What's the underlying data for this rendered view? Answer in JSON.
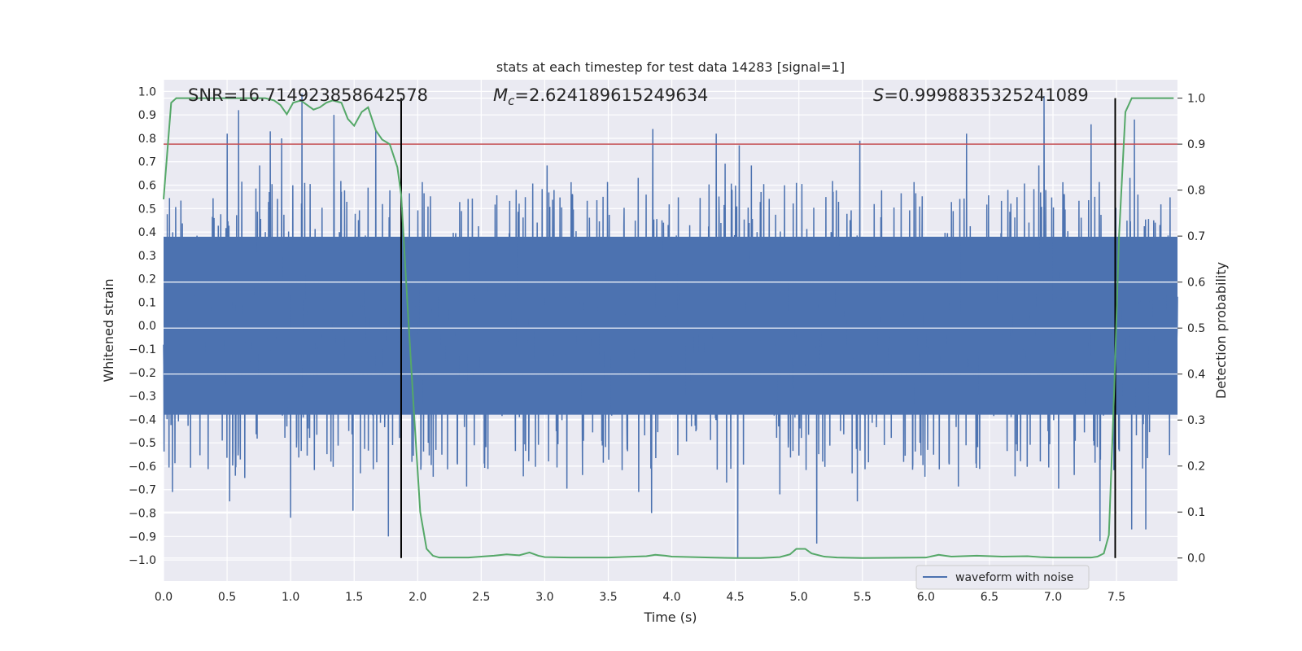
{
  "chart_data": {
    "type": "line",
    "title": "stats at each timestep for test data 14283 [signal=1]",
    "xlabel": "Time (s)",
    "ylabel_left": "Whitened strain",
    "ylabel_right": "Detection probability",
    "xlim": [
      0.0,
      7.98
    ],
    "ylim_left": [
      -1.09,
      1.05
    ],
    "ylim_right": [
      -0.05,
      1.04
    ],
    "x_ticks": [
      "0.0",
      "0.5",
      "1.0",
      "1.5",
      "2.0",
      "2.5",
      "3.0",
      "3.5",
      "4.0",
      "4.5",
      "5.0",
      "5.5",
      "6.0",
      "6.5",
      "7.0",
      "7.5"
    ],
    "y_ticks_left": [
      "1.0",
      "0.9",
      "0.8",
      "0.7",
      "0.6",
      "0.5",
      "0.4",
      "0.3",
      "0.2",
      "0.1",
      "0.0",
      "-0.1",
      "-0.2",
      "-0.3",
      "-0.4",
      "-0.5",
      "-0.6",
      "-0.7",
      "-0.8",
      "-0.9",
      "-1.0"
    ],
    "y_ticks_right": [
      "1.0",
      "0.9",
      "0.8",
      "0.7",
      "0.6",
      "0.5",
      "0.4",
      "0.3",
      "0.2",
      "0.1",
      "0.0"
    ],
    "annotations": {
      "snr": "SNR=16.714923858642578",
      "mc_symbol": "M",
      "mc_sub": "c",
      "mc_value": "=2.624189615249634",
      "s_symbol": "S",
      "s_value": "=0.9998835325241089"
    },
    "threshold": 0.9,
    "vertical_lines_x": [
      1.87,
      7.49
    ],
    "waveform": {
      "name": "waveform with noise",
      "core_amplitude": 0.38,
      "sample_count": 4096,
      "peaks": [
        {
          "x": 0.5,
          "y": 0.82
        },
        {
          "x": 0.59,
          "y": 0.92
        },
        {
          "x": 0.84,
          "y": 0.83
        },
        {
          "x": 0.93,
          "y": 0.8
        },
        {
          "x": 1.09,
          "y": 0.99
        },
        {
          "x": 1.34,
          "y": 0.9
        },
        {
          "x": 1.67,
          "y": 0.84
        },
        {
          "x": 3.85,
          "y": 0.84
        },
        {
          "x": 4.35,
          "y": 0.82
        },
        {
          "x": 4.53,
          "y": 0.77
        },
        {
          "x": 5.48,
          "y": 0.79
        },
        {
          "x": 6.32,
          "y": 0.82
        },
        {
          "x": 6.93,
          "y": 0.98
        },
        {
          "x": 7.3,
          "y": 0.86
        },
        {
          "x": 7.64,
          "y": 0.88
        },
        {
          "x": 0.52,
          "y": -0.75
        },
        {
          "x": 0.64,
          "y": -0.65
        },
        {
          "x": 1.0,
          "y": -0.82
        },
        {
          "x": 1.49,
          "y": -0.79
        },
        {
          "x": 1.77,
          "y": -0.9
        },
        {
          "x": 3.74,
          "y": -0.71
        },
        {
          "x": 3.84,
          "y": -0.8
        },
        {
          "x": 4.52,
          "y": -0.99
        },
        {
          "x": 5.14,
          "y": -0.93
        },
        {
          "x": 5.46,
          "y": -0.75
        },
        {
          "x": 7.37,
          "y": -0.92
        },
        {
          "x": 7.62,
          "y": -0.87
        },
        {
          "x": 7.73,
          "y": -0.87
        },
        {
          "x": 0.07,
          "y": -0.71
        },
        {
          "x": 4.85,
          "y": -0.72
        }
      ]
    },
    "detection_probability": {
      "x": [
        0.0,
        0.06,
        0.1,
        0.2,
        0.4,
        0.6,
        0.7,
        0.8,
        0.87,
        0.92,
        0.97,
        1.02,
        1.08,
        1.13,
        1.18,
        1.23,
        1.28,
        1.33,
        1.4,
        1.45,
        1.5,
        1.56,
        1.61,
        1.67,
        1.72,
        1.78,
        1.84,
        1.87,
        1.92,
        1.97,
        2.02,
        2.07,
        2.12,
        2.17,
        2.25,
        2.4,
        2.6,
        2.7,
        2.8,
        2.88,
        2.95,
        3.0,
        3.2,
        3.5,
        3.8,
        3.87,
        3.95,
        4.0,
        4.3,
        4.5,
        4.7,
        4.85,
        4.93,
        4.98,
        5.05,
        5.1,
        5.2,
        5.3,
        5.5,
        6.0,
        6.1,
        6.2,
        6.4,
        6.6,
        6.8,
        6.9,
        7.0,
        7.2,
        7.3,
        7.35,
        7.4,
        7.44,
        7.48,
        7.52,
        7.57,
        7.62,
        7.7,
        7.95
      ],
      "y": [
        0.78,
        0.99,
        1.0,
        1.0,
        1.0,
        1.0,
        1.0,
        1.0,
        0.995,
        0.985,
        0.965,
        0.99,
        0.995,
        0.985,
        0.975,
        0.98,
        0.99,
        0.995,
        0.99,
        0.955,
        0.94,
        0.97,
        0.98,
        0.93,
        0.91,
        0.9,
        0.85,
        0.79,
        0.55,
        0.32,
        0.1,
        0.02,
        0.005,
        0.001,
        0.001,
        0.001,
        0.005,
        0.008,
        0.006,
        0.012,
        0.005,
        0.002,
        0.001,
        0.001,
        0.004,
        0.007,
        0.005,
        0.003,
        0.001,
        0.0,
        0.0,
        0.002,
        0.008,
        0.02,
        0.02,
        0.01,
        0.003,
        0.001,
        0.0,
        0.001,
        0.007,
        0.003,
        0.005,
        0.003,
        0.004,
        0.002,
        0.001,
        0.001,
        0.001,
        0.003,
        0.01,
        0.05,
        0.35,
        0.7,
        0.97,
        1.0,
        1.0,
        1.0
      ]
    },
    "colors": {
      "waveform": "#4c72b0",
      "probability": "#55a868",
      "threshold": "#c44e52",
      "vertical_line": "#000000",
      "plot_background": "#eaeaf2",
      "grid": "#ffffff"
    },
    "legend": {
      "entry": "waveform with noise",
      "placement": "bottom-right"
    }
  }
}
